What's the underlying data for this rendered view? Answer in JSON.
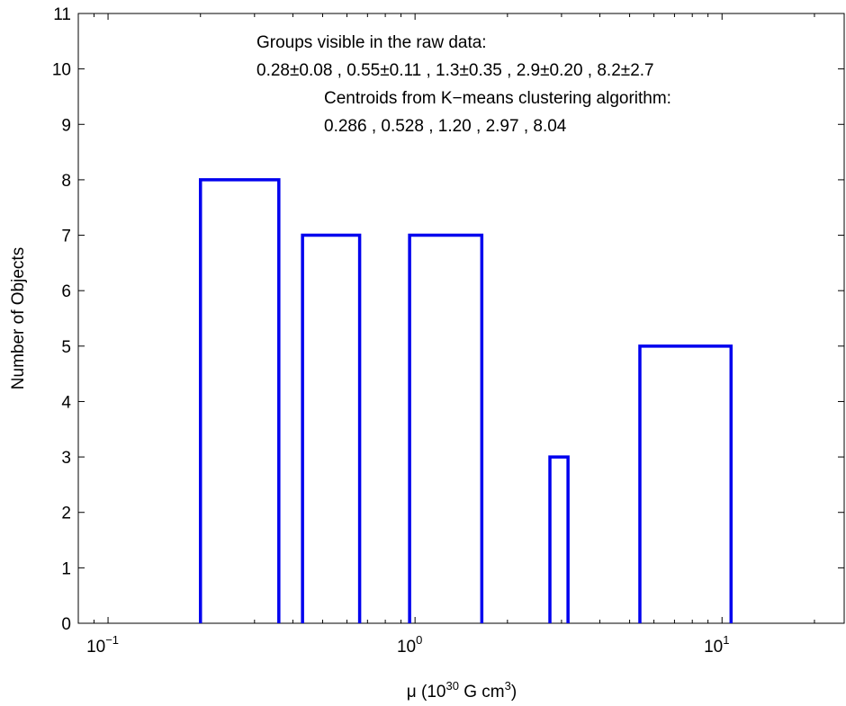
{
  "chart_data": {
    "type": "histogram",
    "x_scale": "log",
    "xlim": [
      0.08,
      25
    ],
    "ylim": [
      0,
      11
    ],
    "yticks": [
      0,
      1,
      2,
      3,
      4,
      5,
      6,
      7,
      8,
      9,
      10,
      11
    ],
    "xticks": [
      {
        "value": 0.1,
        "base": "10",
        "exp": "−1"
      },
      {
        "value": 1,
        "base": "10",
        "exp": "0"
      },
      {
        "value": 10,
        "base": "10",
        "exp": "1"
      }
    ],
    "xlabel": {
      "prefix": "μ (10",
      "exp": "30",
      "suffix": " G cm",
      "exp2": "3",
      "close": ")"
    },
    "ylabel": "Number of Objects",
    "series_color": "#0000ee",
    "bins": [
      {
        "x0": 0.2,
        "x1": 0.36,
        "count": 8
      },
      {
        "x0": 0.43,
        "x1": 0.66,
        "count": 7
      },
      {
        "x0": 0.96,
        "x1": 1.65,
        "count": 7
      },
      {
        "x0": 2.75,
        "x1": 3.15,
        "count": 3
      },
      {
        "x0": 5.4,
        "x1": 10.7,
        "count": 5
      }
    ],
    "annotations": {
      "line1": "Groups visible in the raw data:",
      "line2": "0.28±0.08 , 0.55±0.11 , 1.3±0.35 , 2.9±0.20 , 8.2±2.7",
      "line3": "Centroids from K−means clustering algorithm:",
      "line4": "0.286 , 0.528 , 1.20 , 2.97 , 8.04"
    }
  }
}
